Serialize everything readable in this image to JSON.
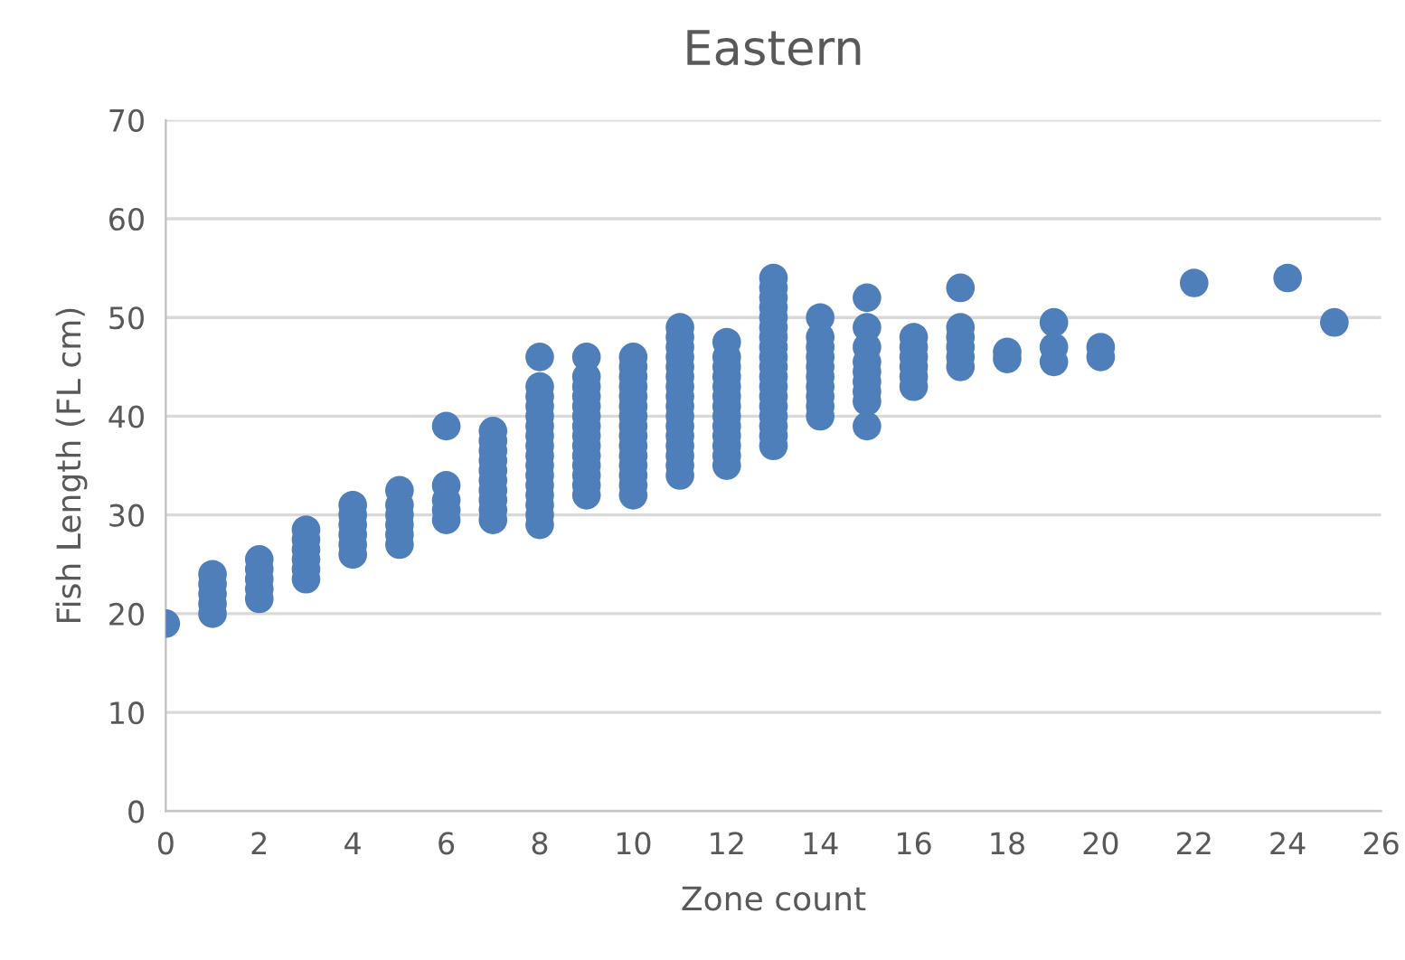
{
  "chart_data": {
    "type": "scatter",
    "title": "Eastern",
    "xlabel": "Zone count",
    "ylabel": "Fish Length (FL cm)",
    "x": [
      0,
      1,
      1,
      1,
      1,
      1,
      2,
      2,
      2,
      2,
      2,
      3,
      3,
      3,
      3,
      3,
      3,
      4,
      4,
      4,
      4,
      4,
      4,
      5,
      5,
      5,
      5,
      5,
      5,
      6,
      6,
      6,
      6,
      6,
      7,
      7,
      7,
      7,
      7,
      7,
      7,
      7,
      7,
      7,
      8,
      8,
      8,
      8,
      8,
      8,
      8,
      8,
      8,
      8,
      8,
      8,
      8,
      8,
      8,
      8,
      9,
      9,
      9,
      9,
      9,
      9,
      9,
      9,
      9,
      9,
      9,
      9,
      9,
      9,
      10,
      10,
      10,
      10,
      10,
      10,
      10,
      10,
      10,
      10,
      10,
      10,
      10,
      10,
      10,
      11,
      11,
      11,
      11,
      11,
      11,
      11,
      11,
      11,
      11,
      11,
      11,
      11,
      11,
      11,
      11,
      12,
      12,
      12,
      12,
      12,
      12,
      12,
      12,
      12,
      12,
      12,
      12,
      12,
      13,
      13,
      13,
      13,
      13,
      13,
      13,
      13,
      13,
      13,
      13,
      13,
      13,
      13,
      13,
      13,
      13,
      13,
      14,
      14,
      14,
      14,
      14,
      14,
      14,
      14,
      14,
      14,
      15,
      15,
      15,
      15,
      15,
      15,
      15,
      15,
      15,
      16,
      16,
      16,
      16,
      16,
      16,
      17,
      17,
      17,
      17,
      17,
      17,
      18,
      18,
      19,
      19,
      19,
      20,
      20,
      22,
      24,
      25
    ],
    "values": [
      19,
      20,
      21,
      22,
      23,
      24,
      21.5,
      22.5,
      23.5,
      24.5,
      25.5,
      23.5,
      24.5,
      25.5,
      26.5,
      27.5,
      28.5,
      26,
      27,
      28,
      29,
      30,
      31,
      27,
      28,
      29,
      30,
      31,
      32.5,
      29.5,
      30.5,
      31.5,
      33,
      39,
      29.5,
      30.5,
      31.5,
      32.5,
      33.5,
      34.5,
      35.5,
      36.5,
      37.5,
      38.5,
      29,
      30,
      31,
      32,
      33,
      34,
      35,
      36,
      37,
      38,
      39,
      40,
      41,
      42,
      43,
      46,
      32,
      33,
      34,
      35,
      36,
      37,
      38,
      39,
      40,
      41,
      42,
      43,
      44,
      46,
      32,
      33,
      34,
      35,
      36,
      37,
      38,
      39,
      40,
      41,
      42,
      43,
      44,
      45,
      46,
      34,
      35,
      36,
      37,
      38,
      39,
      40,
      41,
      42,
      43,
      44,
      45,
      46,
      47,
      48,
      49,
      35,
      36,
      37,
      38,
      39,
      40,
      41,
      42,
      43,
      44,
      45,
      46,
      47.5,
      37,
      38,
      39,
      40,
      41,
      42,
      43,
      44,
      45,
      46,
      47,
      48,
      49,
      50,
      51,
      52,
      53,
      54,
      40,
      41,
      42,
      43,
      44,
      45,
      46,
      47,
      48,
      50,
      39,
      41.5,
      42.5,
      43.5,
      44.5,
      45.5,
      47,
      49,
      52,
      43,
      44,
      45,
      46,
      47,
      48,
      45,
      46,
      47,
      48,
      49,
      53,
      45.8,
      46.5,
      45.5,
      47,
      49.5,
      46,
      47,
      53.5,
      54,
      49.5
    ],
    "color": "#4e7fbb",
    "marker": "circle",
    "xlim": [
      0,
      26
    ],
    "xticks": [
      0,
      2,
      4,
      6,
      8,
      10,
      12,
      14,
      16,
      18,
      20,
      22,
      24,
      26
    ],
    "ylim": [
      0,
      70
    ],
    "yticks": [
      0,
      10,
      20,
      30,
      40,
      50,
      60,
      70
    ],
    "grid": "y"
  }
}
